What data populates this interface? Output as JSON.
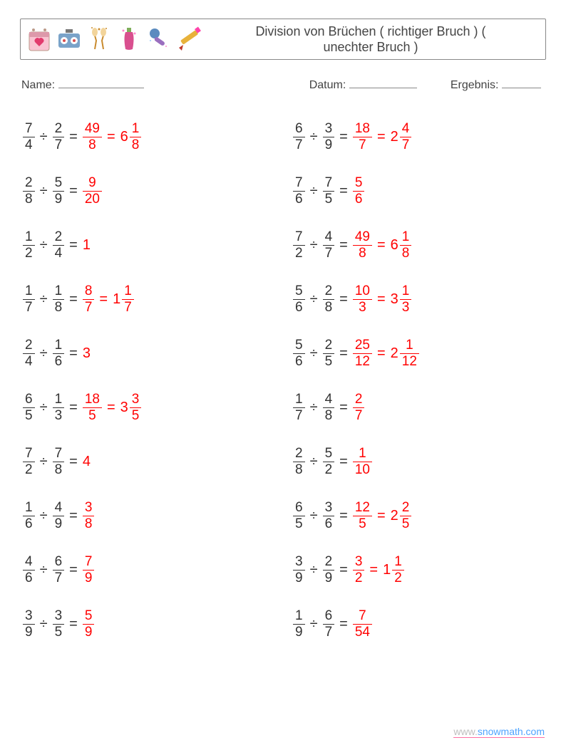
{
  "title_line1": "Division von Brüchen ( richtiger Bruch ) (",
  "title_line2": "unechter Bruch )",
  "meta": {
    "name_label": "Name:",
    "date_label": "Datum:",
    "result_label": "Ergebnis:"
  },
  "blanks": {
    "name_w": 120,
    "date_w": 95,
    "result_w": 55
  },
  "footer": {
    "prefix": "www.",
    "domain": "snowmath.com"
  },
  "columns": [
    [
      {
        "a": {
          "n": 7,
          "d": 4
        },
        "b": {
          "n": 2,
          "d": 7
        },
        "r1": {
          "n": 49,
          "d": 8
        },
        "r2": {
          "w": 6,
          "n": 1,
          "d": 8
        }
      },
      {
        "a": {
          "n": 2,
          "d": 8
        },
        "b": {
          "n": 5,
          "d": 9
        },
        "r1": {
          "n": 9,
          "d": 20
        }
      },
      {
        "a": {
          "n": 1,
          "d": 2
        },
        "b": {
          "n": 2,
          "d": 4
        },
        "r1": {
          "w": 1
        }
      },
      {
        "a": {
          "n": 1,
          "d": 7
        },
        "b": {
          "n": 1,
          "d": 8
        },
        "r1": {
          "n": 8,
          "d": 7
        },
        "r2": {
          "w": 1,
          "n": 1,
          "d": 7
        }
      },
      {
        "a": {
          "n": 2,
          "d": 4
        },
        "b": {
          "n": 1,
          "d": 6
        },
        "r1": {
          "w": 3
        }
      },
      {
        "a": {
          "n": 6,
          "d": 5
        },
        "b": {
          "n": 1,
          "d": 3
        },
        "r1": {
          "n": 18,
          "d": 5
        },
        "r2": {
          "w": 3,
          "n": 3,
          "d": 5
        }
      },
      {
        "a": {
          "n": 7,
          "d": 2
        },
        "b": {
          "n": 7,
          "d": 8
        },
        "r1": {
          "w": 4
        }
      },
      {
        "a": {
          "n": 1,
          "d": 6
        },
        "b": {
          "n": 4,
          "d": 9
        },
        "r1": {
          "n": 3,
          "d": 8
        }
      },
      {
        "a": {
          "n": 4,
          "d": 6
        },
        "b": {
          "n": 6,
          "d": 7
        },
        "r1": {
          "n": 7,
          "d": 9
        }
      },
      {
        "a": {
          "n": 3,
          "d": 9
        },
        "b": {
          "n": 3,
          "d": 5
        },
        "r1": {
          "n": 5,
          "d": 9
        }
      }
    ],
    [
      {
        "a": {
          "n": 6,
          "d": 7
        },
        "b": {
          "n": 3,
          "d": 9
        },
        "r1": {
          "n": 18,
          "d": 7
        },
        "r2": {
          "w": 2,
          "n": 4,
          "d": 7
        }
      },
      {
        "a": {
          "n": 7,
          "d": 6
        },
        "b": {
          "n": 7,
          "d": 5
        },
        "r1": {
          "n": 5,
          "d": 6
        }
      },
      {
        "a": {
          "n": 7,
          "d": 2
        },
        "b": {
          "n": 4,
          "d": 7
        },
        "r1": {
          "n": 49,
          "d": 8
        },
        "r2": {
          "w": 6,
          "n": 1,
          "d": 8
        }
      },
      {
        "a": {
          "n": 5,
          "d": 6
        },
        "b": {
          "n": 2,
          "d": 8
        },
        "r1": {
          "n": 10,
          "d": 3
        },
        "r2": {
          "w": 3,
          "n": 1,
          "d": 3
        }
      },
      {
        "a": {
          "n": 5,
          "d": 6
        },
        "b": {
          "n": 2,
          "d": 5
        },
        "r1": {
          "n": 25,
          "d": 12
        },
        "r2": {
          "w": 2,
          "n": 1,
          "d": 12
        }
      },
      {
        "a": {
          "n": 1,
          "d": 7
        },
        "b": {
          "n": 4,
          "d": 8
        },
        "r1": {
          "n": 2,
          "d": 7
        }
      },
      {
        "a": {
          "n": 2,
          "d": 8
        },
        "b": {
          "n": 5,
          "d": 2
        },
        "r1": {
          "n": 1,
          "d": 10
        }
      },
      {
        "a": {
          "n": 6,
          "d": 5
        },
        "b": {
          "n": 3,
          "d": 6
        },
        "r1": {
          "n": 12,
          "d": 5
        },
        "r2": {
          "w": 2,
          "n": 2,
          "d": 5
        }
      },
      {
        "a": {
          "n": 3,
          "d": 9
        },
        "b": {
          "n": 2,
          "d": 9
        },
        "r1": {
          "n": 3,
          "d": 2
        },
        "r2": {
          "w": 1,
          "n": 1,
          "d": 2
        }
      },
      {
        "a": {
          "n": 1,
          "d": 9
        },
        "b": {
          "n": 6,
          "d": 7
        },
        "r1": {
          "n": 7,
          "d": 54
        }
      }
    ]
  ],
  "colors": {
    "answer": "#ff0000",
    "text": "#333333"
  },
  "icons": [
    {
      "name": "calendar-heart-icon",
      "bg": "#f9c4d2",
      "fg": "#e23b6d"
    },
    {
      "name": "boombox-icon",
      "bg": "#7aa3c9",
      "fg": "#d94f4f"
    },
    {
      "name": "cheers-icon",
      "bg": "#f2d49b",
      "fg": "#c98b2e"
    },
    {
      "name": "bottle-icon",
      "bg": "#d94f8f",
      "fg": "#7fae5a"
    },
    {
      "name": "microphone-icon",
      "bg": "#9a6fbf",
      "fg": "#5b8bbf"
    },
    {
      "name": "pencil-icon",
      "bg": "#e8b23a",
      "fg": "#c0392b"
    }
  ]
}
